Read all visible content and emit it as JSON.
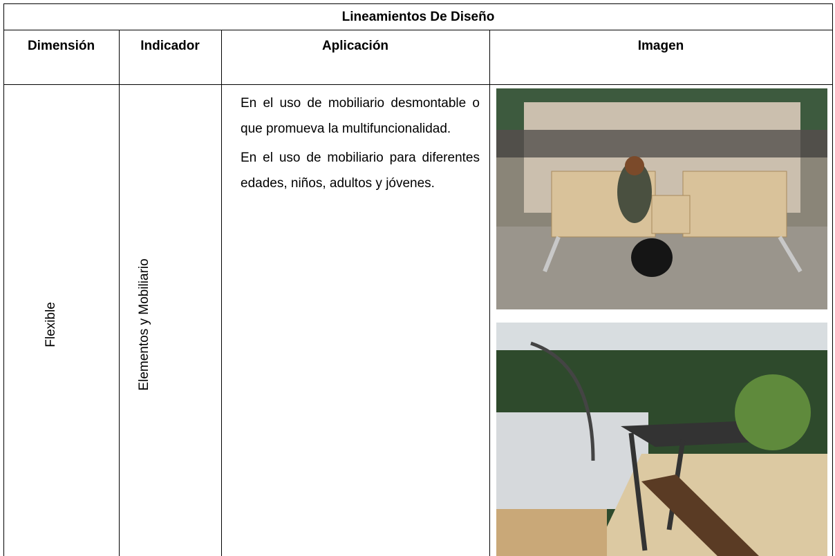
{
  "header": {
    "title": "Lineamientos De Diseño"
  },
  "table": {
    "columns": [
      "Dimensión",
      "Indicador",
      "Aplicación",
      "Imagen"
    ],
    "rows": [
      {
        "dimension": "Flexible",
        "indicator": "Elementos y Mobiliario",
        "application": [
          "En el uso de mobiliario desmontable o que promueva la multifuncionalidad.",
          "En el uso de mobiliario para diferentes edades, niños, adultos y jóvenes."
        ]
      }
    ]
  }
}
